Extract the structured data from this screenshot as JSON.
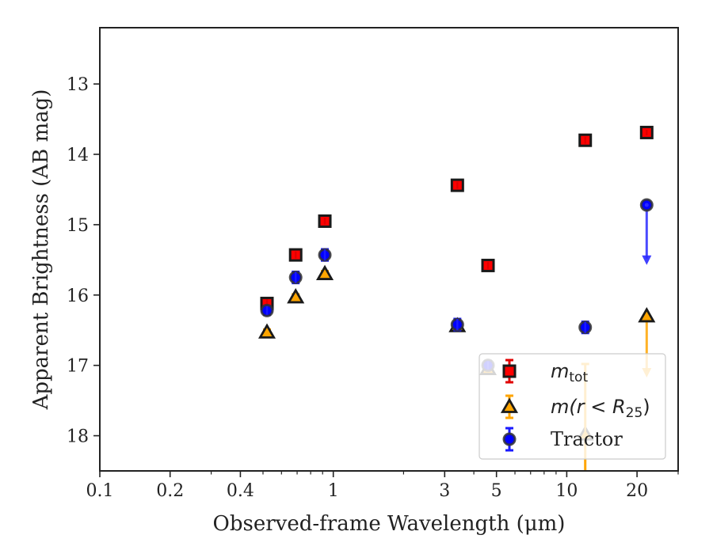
{
  "chart_data": {
    "type": "scatter",
    "xlabel": "Observed-frame Wavelength (μm)",
    "ylabel": "Apparent Brightness (AB mag)",
    "xscale": "log",
    "xlim": [
      0.1,
      30
    ],
    "ylim": [
      18.5,
      12.2
    ],
    "y_inverted": true,
    "x_ticks": [
      0.1,
      0.2,
      0.4,
      1,
      3,
      5,
      10,
      20
    ],
    "x_tick_labels": [
      "0.1",
      "0.2",
      "0.4",
      "1",
      "3",
      "5",
      "10",
      "20"
    ],
    "y_ticks": [
      13,
      14,
      15,
      16,
      17,
      18
    ],
    "y_tick_labels": [
      "13",
      "14",
      "15",
      "16",
      "17",
      "18"
    ],
    "legend_position": "lower-right",
    "series": [
      {
        "name": "m_tot",
        "marker": "square",
        "color": "#ff0000",
        "edgecolor": "#1a1a1a",
        "points": [
          {
            "x": 0.52,
            "y": 16.12,
            "err": 0.06
          },
          {
            "x": 0.69,
            "y": 15.43,
            "err": 0.05
          },
          {
            "x": 0.92,
            "y": 14.95,
            "err": 0.05
          },
          {
            "x": 3.4,
            "y": 14.44,
            "err": 0.05
          },
          {
            "x": 4.6,
            "y": 15.58,
            "err": 0.05
          },
          {
            "x": 12.0,
            "y": 13.8,
            "err": 0.05
          },
          {
            "x": 22.0,
            "y": 13.69,
            "err": 0.04
          }
        ]
      },
      {
        "name": "m(r < R25)",
        "marker": "triangle",
        "color": "#ffa500",
        "edgecolor": "#1a1a1a",
        "points": [
          {
            "x": 0.52,
            "y": 16.53,
            "err": 0.04
          },
          {
            "x": 0.69,
            "y": 16.03,
            "err": 0.04
          },
          {
            "x": 0.92,
            "y": 15.7,
            "err": 0.04
          },
          {
            "x": 3.4,
            "y": 16.44,
            "err": 0.05
          },
          {
            "x": 4.6,
            "y": 17.05,
            "err": 0.05
          },
          {
            "x": 12.0,
            "y": 17.98,
            "err": 1.0
          },
          {
            "x": 22.0,
            "y": 16.3,
            "err": 0,
            "upper_limit": true,
            "limit_to": 17.15
          }
        ]
      },
      {
        "name": "Tractor",
        "marker": "circle",
        "color": "#0000ff",
        "edgecolor": "#333333",
        "points": [
          {
            "x": 0.52,
            "y": 16.22,
            "err": 0.06
          },
          {
            "x": 0.69,
            "y": 15.75,
            "err": 0.08
          },
          {
            "x": 0.92,
            "y": 15.43,
            "err": 0.08
          },
          {
            "x": 3.4,
            "y": 16.42,
            "err": 0.08
          },
          {
            "x": 4.6,
            "y": 17.0,
            "err": 0.06
          },
          {
            "x": 12.0,
            "y": 16.46,
            "err": 0.08
          },
          {
            "x": 22.0,
            "y": 14.72,
            "err": 0,
            "upper_limit": true,
            "limit_to": 15.55
          }
        ]
      }
    ]
  },
  "legend": {
    "items": [
      {
        "label": "m",
        "subscript": "tot"
      },
      {
        "label": "m(r < R",
        "subscript": "25",
        "suffix": ")"
      },
      {
        "label": "Tractor"
      }
    ]
  }
}
